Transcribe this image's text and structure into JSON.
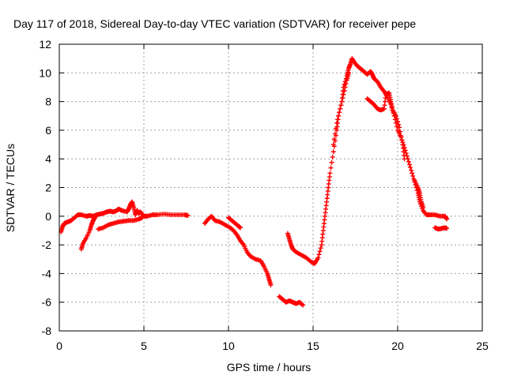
{
  "chart_data": {
    "type": "scatter",
    "title": "Day 117 of 2018, Sidereal Day-to-day VTEC variation (SDTVAR) for receiver pepe",
    "xlabel": "GPS time / hours",
    "ylabel": "SDTVAR / TECUs",
    "xlim": [
      0,
      25
    ],
    "ylim": [
      -8,
      12
    ],
    "xticks": [
      "0",
      "5",
      "10",
      "15",
      "20",
      "25"
    ],
    "yticks": [
      "-8",
      "-6",
      "-4",
      "-2",
      "0",
      "2",
      "4",
      "6",
      "8",
      "10",
      "12"
    ],
    "grid": true,
    "marker": "+",
    "series": [
      {
        "name": "SDTVAR",
        "color": "#ff0000",
        "segments": [
          [
            [
              0.1,
              -1.1
            ],
            [
              0.2,
              -0.7
            ],
            [
              0.3,
              -0.5
            ],
            [
              0.5,
              -0.4
            ],
            [
              0.7,
              -0.3
            ],
            [
              0.9,
              -0.1
            ],
            [
              1.1,
              0.1
            ],
            [
              1.3,
              0.1
            ],
            [
              1.6,
              0.0
            ],
            [
              1.8,
              0.05
            ],
            [
              2.0,
              0.0
            ],
            [
              2.2,
              0.1
            ],
            [
              2.4,
              0.15
            ],
            [
              2.6,
              0.2
            ],
            [
              2.8,
              0.3
            ],
            [
              3.0,
              0.35
            ],
            [
              3.2,
              0.3
            ],
            [
              3.4,
              0.4
            ],
            [
              3.5,
              0.5
            ],
            [
              3.7,
              0.4
            ],
            [
              4.0,
              0.3
            ],
            [
              4.1,
              0.5
            ],
            [
              4.2,
              0.8
            ],
            [
              4.3,
              1.0
            ],
            [
              4.4,
              0.6
            ],
            [
              4.5,
              0.1
            ],
            [
              4.6,
              0.4
            ],
            [
              4.7,
              0.2
            ],
            [
              4.8,
              0.3
            ],
            [
              5.0,
              0.0
            ],
            [
              5.2,
              0.0
            ],
            [
              5.5,
              0.1
            ],
            [
              5.8,
              0.1
            ],
            [
              6.2,
              0.15
            ],
            [
              6.6,
              0.1
            ],
            [
              7.0,
              0.1
            ],
            [
              7.4,
              0.1
            ],
            [
              7.6,
              0.05
            ]
          ],
          [
            [
              1.3,
              -2.3
            ],
            [
              1.4,
              -1.9
            ],
            [
              1.6,
              -1.5
            ],
            [
              1.8,
              -1.0
            ],
            [
              1.9,
              -0.6
            ],
            [
              2.0,
              -0.3
            ],
            [
              2.1,
              -0.1
            ],
            [
              2.2,
              0.1
            ]
          ],
          [
            [
              2.3,
              -0.9
            ],
            [
              2.6,
              -0.8
            ],
            [
              2.9,
              -0.6
            ],
            [
              3.2,
              -0.5
            ],
            [
              3.5,
              -0.4
            ],
            [
              3.8,
              -0.35
            ],
            [
              4.1,
              -0.3
            ],
            [
              4.4,
              -0.3
            ],
            [
              4.7,
              -0.2
            ],
            [
              4.9,
              -0.1
            ]
          ],
          [
            [
              8.6,
              -0.5
            ],
            [
              8.8,
              -0.2
            ],
            [
              9.0,
              0.0
            ],
            [
              9.2,
              -0.3
            ],
            [
              9.5,
              -0.4
            ],
            [
              9.8,
              -0.6
            ],
            [
              10.1,
              -0.8
            ],
            [
              10.3,
              -1.0
            ],
            [
              10.5,
              -1.3
            ],
            [
              10.7,
              -1.7
            ],
            [
              10.9,
              -2.0
            ],
            [
              11.1,
              -2.5
            ],
            [
              11.3,
              -2.8
            ],
            [
              11.6,
              -3.0
            ],
            [
              11.9,
              -3.1
            ],
            [
              12.1,
              -3.5
            ],
            [
              12.3,
              -4.0
            ],
            [
              12.4,
              -4.4
            ],
            [
              12.5,
              -4.8
            ]
          ],
          [
            [
              10.0,
              -0.1
            ],
            [
              10.2,
              -0.3
            ],
            [
              10.4,
              -0.5
            ],
            [
              10.6,
              -0.7
            ],
            [
              10.7,
              -0.8
            ]
          ],
          [
            [
              13.0,
              -5.6
            ],
            [
              13.2,
              -5.8
            ],
            [
              13.4,
              -6.0
            ],
            [
              13.6,
              -5.9
            ],
            [
              13.8,
              -6.0
            ],
            [
              14.0,
              -6.1
            ],
            [
              14.2,
              -6.0
            ],
            [
              14.4,
              -6.2
            ]
          ],
          [
            [
              13.5,
              -1.2
            ],
            [
              13.6,
              -1.6
            ],
            [
              13.7,
              -2.0
            ],
            [
              13.8,
              -2.3
            ],
            [
              14.0,
              -2.5
            ],
            [
              14.3,
              -2.7
            ],
            [
              14.6,
              -2.9
            ],
            [
              14.9,
              -3.2
            ],
            [
              15.1,
              -3.3
            ],
            [
              15.3,
              -2.9
            ],
            [
              15.5,
              -2.0
            ],
            [
              15.6,
              -1.0
            ],
            [
              15.7,
              0.0
            ],
            [
              15.8,
              1.0
            ],
            [
              15.9,
              2.0
            ],
            [
              16.0,
              3.0
            ],
            [
              16.2,
              4.5
            ],
            [
              16.4,
              6.0
            ],
            [
              16.5,
              7.0
            ],
            [
              16.7,
              8.0
            ],
            [
              16.8,
              9.0
            ],
            [
              17.0,
              9.8
            ],
            [
              17.1,
              10.3
            ],
            [
              17.2,
              10.6
            ],
            [
              17.3,
              11.0
            ],
            [
              17.4,
              10.8
            ],
            [
              17.6,
              10.5
            ],
            [
              17.8,
              10.3
            ],
            [
              18.0,
              10.1
            ],
            [
              18.2,
              9.9
            ],
            [
              18.4,
              10.1
            ],
            [
              18.5,
              9.9
            ],
            [
              18.6,
              9.6
            ],
            [
              18.8,
              9.4
            ],
            [
              19.0,
              9.0
            ],
            [
              19.2,
              8.7
            ],
            [
              19.4,
              8.3
            ],
            [
              19.6,
              7.8
            ],
            [
              19.8,
              7.0
            ],
            [
              20.0,
              6.0
            ],
            [
              20.2,
              5.5
            ],
            [
              20.4,
              4.8
            ],
            [
              20.6,
              4.0
            ],
            [
              20.8,
              3.2
            ],
            [
              21.0,
              2.4
            ],
            [
              21.2,
              1.6
            ],
            [
              21.3,
              1.0
            ],
            [
              21.5,
              0.4
            ],
            [
              21.7,
              0.1
            ],
            [
              21.9,
              0.1
            ],
            [
              22.2,
              0.1
            ],
            [
              22.5,
              0.0
            ],
            [
              22.8,
              0.0
            ],
            [
              22.9,
              -0.2
            ]
          ],
          [
            [
              16.2,
              5.0
            ],
            [
              16.4,
              6.5
            ],
            [
              16.6,
              7.5
            ],
            [
              16.8,
              8.5
            ],
            [
              17.0,
              9.5
            ],
            [
              17.1,
              10.0
            ]
          ],
          [
            [
              18.2,
              8.2
            ],
            [
              18.4,
              8.0
            ],
            [
              18.6,
              7.8
            ],
            [
              18.8,
              7.5
            ],
            [
              19.0,
              7.4
            ],
            [
              19.2,
              7.5
            ],
            [
              19.3,
              8.5
            ],
            [
              19.5,
              8.6
            ],
            [
              19.6,
              8.0
            ],
            [
              19.7,
              7.4
            ],
            [
              19.9,
              7.0
            ],
            [
              20.1,
              6.2
            ],
            [
              20.3,
              5.0
            ],
            [
              20.4,
              4.0
            ]
          ],
          [
            [
              21.0,
              2.5
            ],
            [
              21.2,
              2.0
            ],
            [
              21.3,
              1.6
            ],
            [
              21.4,
              1.0
            ],
            [
              21.5,
              0.6
            ]
          ],
          [
            [
              22.2,
              -0.8
            ],
            [
              22.4,
              -0.9
            ],
            [
              22.6,
              -0.85
            ],
            [
              22.8,
              -0.8
            ],
            [
              22.9,
              -0.85
            ]
          ]
        ]
      }
    ]
  }
}
